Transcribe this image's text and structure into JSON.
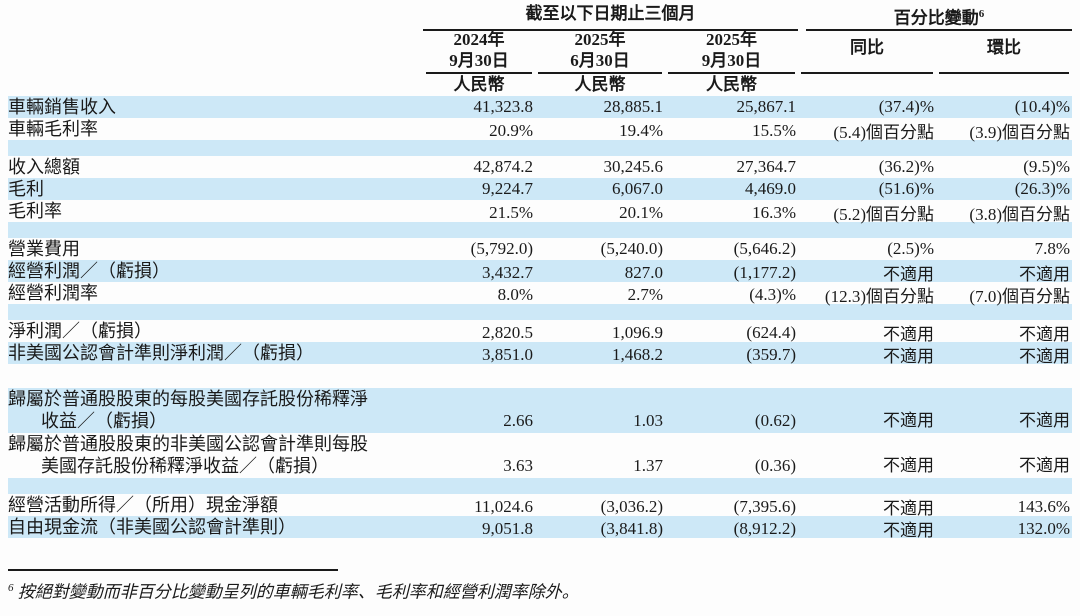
{
  "colors": {
    "stripe": "#cde8f7",
    "text": "#1a1a1a",
    "rule": "#1a1a1a",
    "background": "#fdfdfd"
  },
  "header": {
    "period_group_label": "截至以下日期止三個月",
    "change_group_label": "百分比變動",
    "change_group_footnote_ref": "6",
    "date_columns": [
      {
        "year": "2024年",
        "date": "9月30日",
        "currency": "人民幣"
      },
      {
        "year": "2025年",
        "date": "6月30日",
        "currency": "人民幣"
      },
      {
        "year": "2025年",
        "date": "9月30日",
        "currency": "人民幣"
      }
    ],
    "change_columns": [
      {
        "label": "同比"
      },
      {
        "label": "環比"
      }
    ]
  },
  "table": {
    "rows": [
      {
        "type": "data",
        "bg": "stripe",
        "label": "車輛銷售收入",
        "values": [
          "41,323.8",
          "28,885.1",
          "25,867.1",
          "(37.4)%",
          "(10.4)%"
        ]
      },
      {
        "type": "data",
        "bg": "plain",
        "label": "車輛毛利率",
        "values": [
          "20.9%",
          "19.4%",
          "15.5%",
          "(5.4)個百分點",
          "(3.9)個百分點"
        ]
      },
      {
        "type": "spacer",
        "bg": "stripe"
      },
      {
        "type": "data",
        "bg": "plain",
        "label": "收入總額",
        "values": [
          "42,874.2",
          "30,245.6",
          "27,364.7",
          "(36.2)%",
          "(9.5)%"
        ]
      },
      {
        "type": "data",
        "bg": "stripe",
        "label": "毛利",
        "values": [
          "9,224.7",
          "6,067.0",
          "4,469.0",
          "(51.6)%",
          "(26.3)%"
        ]
      },
      {
        "type": "data",
        "bg": "plain",
        "label": "毛利率",
        "values": [
          "21.5%",
          "20.1%",
          "16.3%",
          "(5.2)個百分點",
          "(3.8)個百分點"
        ]
      },
      {
        "type": "spacer",
        "bg": "stripe"
      },
      {
        "type": "data",
        "bg": "plain",
        "label": "營業費用",
        "values": [
          "(5,792.0)",
          "(5,240.0)",
          "(5,646.2)",
          "(2.5)%",
          "7.8%"
        ]
      },
      {
        "type": "data",
        "bg": "stripe",
        "label": "經營利潤／（虧損）",
        "values": [
          "3,432.7",
          "827.0",
          "(1,177.2)",
          "不適用",
          "不適用"
        ]
      },
      {
        "type": "data",
        "bg": "plain",
        "label": "經營利潤率",
        "values": [
          "8.0%",
          "2.7%",
          "(4.3)%",
          "(12.3)個百分點",
          "(7.0)個百分點"
        ]
      },
      {
        "type": "spacer",
        "bg": "stripe"
      },
      {
        "type": "data",
        "bg": "plain",
        "label": "淨利潤／（虧損）",
        "values": [
          "2,820.5",
          "1,096.9",
          "(624.4)",
          "不適用",
          "不適用"
        ]
      },
      {
        "type": "data",
        "bg": "stripe",
        "label": "非美國公認會計準則淨利潤／（虧損）",
        "values": [
          "3,851.0",
          "1,468.2",
          "(359.7)",
          "不適用",
          "不適用"
        ]
      },
      {
        "type": "spacer",
        "bg": "plain",
        "tall": true
      },
      {
        "type": "data",
        "bg": "stripe",
        "label": "歸屬於普通股股東的每股美國存託股份稀釋淨",
        "label2": "收益／（虧損）",
        "values": [
          "2.66",
          "1.03",
          "(0.62)",
          "不適用",
          "不適用"
        ]
      },
      {
        "type": "data",
        "bg": "plain",
        "label": "歸屬於普通股股東的非美國公認會計準則每股",
        "label2": "美國存託股份稀釋淨收益／（虧損）",
        "values": [
          "3.63",
          "1.37",
          "(0.36)",
          "不適用",
          "不適用"
        ]
      },
      {
        "type": "spacer",
        "bg": "stripe"
      },
      {
        "type": "data",
        "bg": "plain",
        "label": "經營活動所得／（所用）現金淨額",
        "values": [
          "11,024.6",
          "(3,036.2)",
          "(7,395.6)",
          "不適用",
          "143.6%"
        ]
      },
      {
        "type": "data",
        "bg": "stripe",
        "label": "自由現金流（非美國公認會計準則）",
        "values": [
          "9,051.8",
          "(3,841.8)",
          "(8,912.2)",
          "不適用",
          "132.0%"
        ]
      }
    ]
  },
  "footnote": {
    "ref": "6",
    "text": "按絕對變動而非百分比變動呈列的車輛毛利率、毛利率和經營利潤率除外。"
  }
}
